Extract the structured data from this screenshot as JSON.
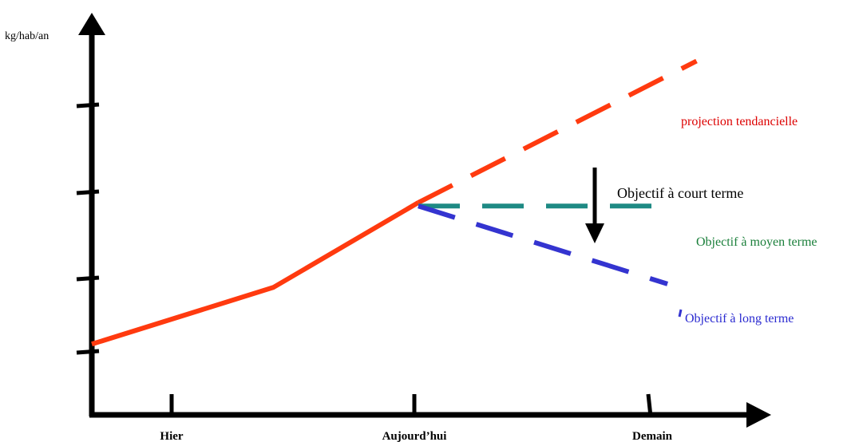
{
  "chart_data": {
    "type": "line",
    "ylabel": "kg/hab/an",
    "x_tick_labels": [
      "Hier",
      "Aujourd’hui",
      "Demain"
    ],
    "series": [
      {
        "name": "",
        "style": "solid",
        "color": "#ff3a0f",
        "points": [
          [
            0,
            1.0
          ],
          [
            0.75,
            1.8
          ],
          [
            1.35,
            3.0
          ]
        ]
      },
      {
        "name": "projection tendancielle",
        "style": "dashed",
        "color": "#ff3a0f",
        "points": [
          [
            1.35,
            3.0
          ],
          [
            2.5,
            5.0
          ]
        ]
      },
      {
        "name": "Objectif à moyen terme",
        "style": "dashed",
        "color": "#1e8a84",
        "points": [
          [
            1.35,
            2.95
          ],
          [
            2.4,
            2.95
          ]
        ]
      },
      {
        "name": "Objectif à long terme",
        "style": "dashed",
        "color": "#3434d0",
        "points": [
          [
            1.35,
            2.95
          ],
          [
            2.38,
            1.85
          ]
        ]
      }
    ],
    "annotations": [
      {
        "text": "projection tendancielle",
        "color": "#dd0000"
      },
      {
        "text": "Objectif à court terme",
        "color": "#000000"
      },
      {
        "text": "Objectif à moyen terme",
        "color": "#1a7f3a"
      },
      {
        "text": "Objectif à long terme",
        "color": "#2a2ad0"
      }
    ],
    "grid": false
  }
}
